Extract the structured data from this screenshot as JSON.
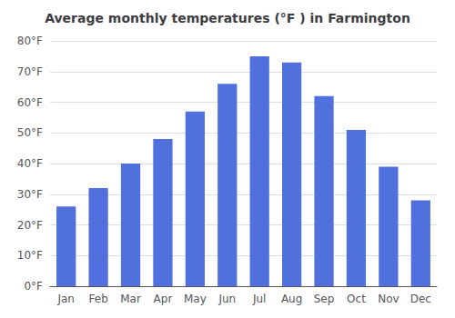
{
  "chart_data": {
    "type": "bar",
    "title": "Average monthly temperatures (°F ) in Farmington",
    "categories": [
      "Jan",
      "Feb",
      "Mar",
      "Apr",
      "May",
      "Jun",
      "Jul",
      "Aug",
      "Sep",
      "Oct",
      "Nov",
      "Dec"
    ],
    "values": [
      26,
      32,
      40,
      48,
      57,
      66,
      75,
      73,
      62,
      51,
      39,
      28
    ],
    "ylim": [
      0,
      80
    ],
    "yticks": [
      {
        "value": 0,
        "label": "0°F"
      },
      {
        "value": 10,
        "label": "10°F"
      },
      {
        "value": 20,
        "label": "20°F"
      },
      {
        "value": 30,
        "label": "30°F"
      },
      {
        "value": 40,
        "label": "40°F"
      },
      {
        "value": 50,
        "label": "50°F"
      },
      {
        "value": 60,
        "label": "60°F"
      },
      {
        "value": 70,
        "label": "70°F"
      },
      {
        "value": 80,
        "label": "80°F"
      }
    ],
    "grid": true
  }
}
